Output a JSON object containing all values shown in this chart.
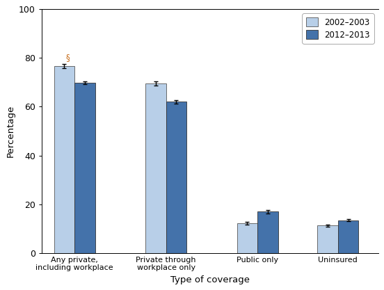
{
  "categories": [
    "Any private,\nincluding workplace",
    "Private through\nworkplace only",
    "Public only",
    "Uninsured"
  ],
  "values_2002": [
    76.7,
    69.5,
    12.1,
    11.2
  ],
  "values_2012": [
    69.8,
    62.0,
    16.9,
    13.4
  ],
  "errors_2002": [
    0.8,
    0.8,
    0.6,
    0.5
  ],
  "errors_2012": [
    0.6,
    0.7,
    0.6,
    0.5
  ],
  "color_2002": "#b8cfe8",
  "color_2012": "#4472aa",
  "ylabel": "Percentage",
  "xlabel": "Type of coverage",
  "ylim": [
    0,
    100
  ],
  "yticks": [
    0,
    20,
    40,
    60,
    80,
    100
  ],
  "legend_2002": "2002–2003",
  "legend_2012": "2012–2013",
  "section_symbol": "§",
  "section_color": "#c87020",
  "bar_width": 0.28,
  "group_positions": [
    0.5,
    1.75,
    3.0,
    4.1
  ]
}
